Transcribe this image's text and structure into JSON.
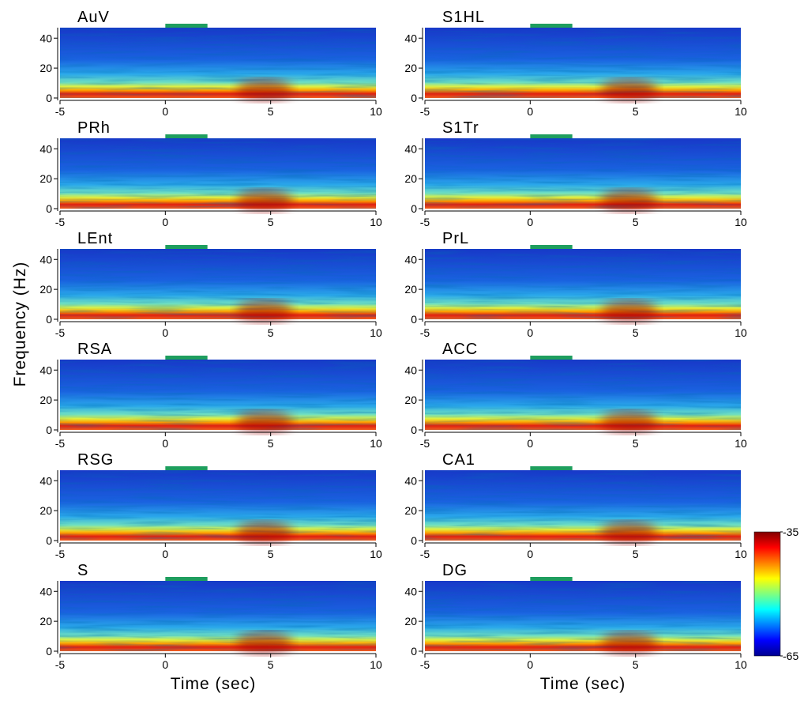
{
  "figure": {
    "y_label": "Frequency (Hz)",
    "x_label": "Time (sec)",
    "xlim": [
      -5,
      10
    ],
    "xticks": [
      -5,
      0,
      5,
      10
    ],
    "ylim": [
      0,
      47
    ],
    "yticks": [
      0,
      20,
      40
    ],
    "stimulus": {
      "start": 0,
      "end": 2,
      "color": "#1e9e5e"
    },
    "colorbar": {
      "lim": [
        -65,
        -35
      ],
      "ticks": [
        -65,
        -35
      ]
    },
    "panels": [
      "AuV",
      "S1HL",
      "PRh",
      "S1Tr",
      "LEnt",
      "PrL",
      "RSA",
      "ACC",
      "RSG",
      "CA1",
      "S",
      "DG"
    ]
  }
}
